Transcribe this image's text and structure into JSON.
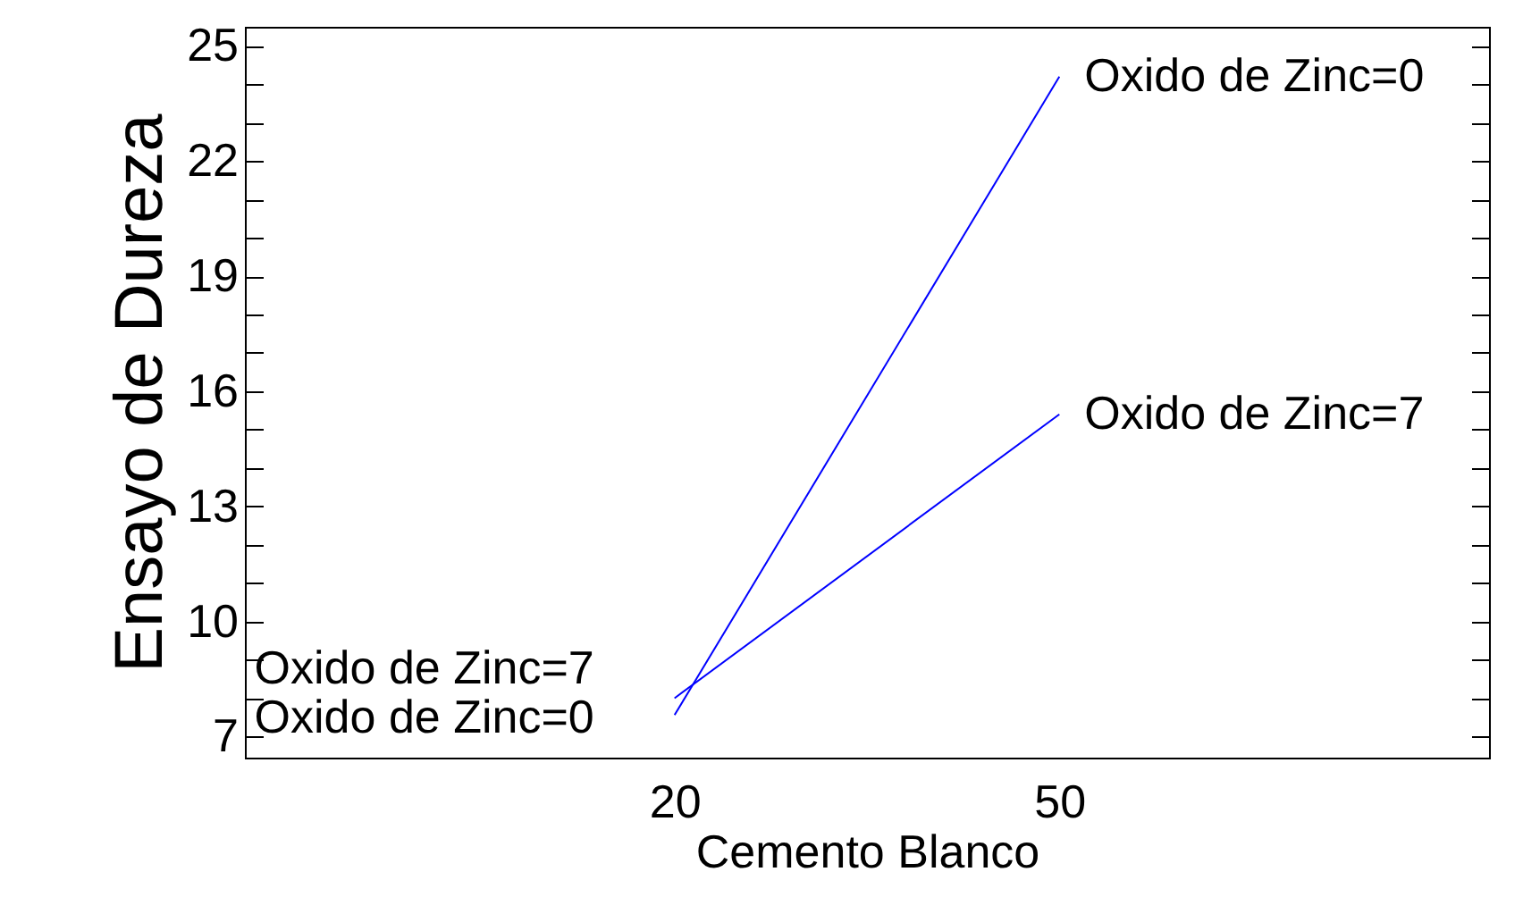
{
  "chart_data": {
    "type": "line",
    "xlabel": "Cemento Blanco",
    "ylabel": "Ensayo de Dureza",
    "x": [
      20,
      50
    ],
    "series": [
      {
        "name": "Oxido de Zinc=0",
        "color": "#0000ff",
        "values": [
          7.56,
          24.2
        ]
      },
      {
        "name": "Oxido de Zinc=7",
        "color": "#0000ff",
        "values": [
          8.0,
          15.4
        ]
      }
    ],
    "xlim": [
      -13.5,
      83.5
    ],
    "xticks": [
      20,
      50
    ],
    "ylim": [
      6.45,
      25.5
    ],
    "yticks": [
      7,
      {
        "value": 8,
        "label": null
      },
      {
        "value": 9,
        "label": null
      },
      10,
      {
        "value": 11,
        "label": null
      },
      {
        "value": 12,
        "label": null
      },
      13,
      {
        "value": 14,
        "label": null
      },
      {
        "value": 15,
        "label": null
      },
      16,
      {
        "value": 17,
        "label": null
      },
      {
        "value": 18,
        "label": null
      },
      19,
      {
        "value": 20,
        "label": null
      },
      {
        "value": 21,
        "label": null
      },
      22,
      {
        "value": 23,
        "label": null
      },
      {
        "value": 24,
        "label": null
      },
      25
    ],
    "line_style": "solid"
  }
}
